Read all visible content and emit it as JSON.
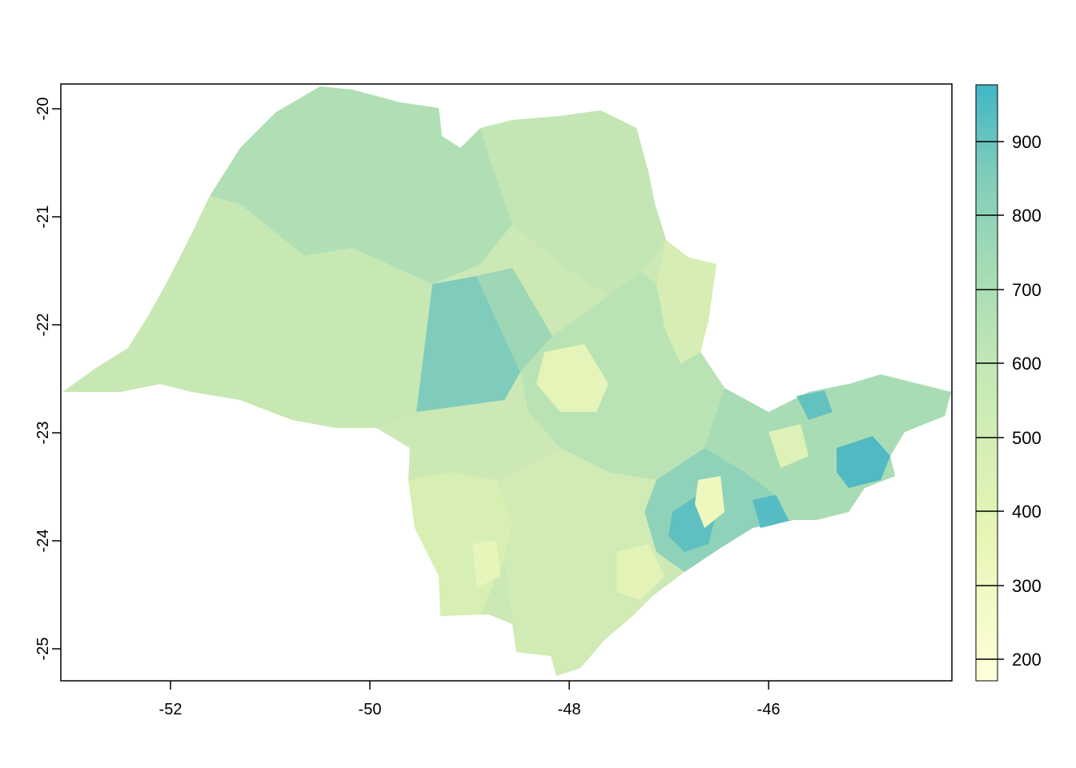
{
  "map": {
    "x_ticks": [
      "-52",
      "-50",
      "-48",
      "-46"
    ],
    "y_ticks": [
      "-20",
      "-21",
      "-22",
      "-23",
      "-24",
      "-25"
    ],
    "x_range": [
      -53.1,
      -44.2
    ],
    "y_range": [
      -25.3,
      -19.8
    ]
  },
  "legend": {
    "ticks": [
      "200",
      "300",
      "400",
      "500",
      "600",
      "700",
      "800",
      "900"
    ],
    "range": [
      170,
      975
    ],
    "colors": [
      "#ffffd9",
      "#edf8b1",
      "#c7e9b4",
      "#a3dbb5",
      "#7fcdbb",
      "#41b6c4"
    ]
  }
}
